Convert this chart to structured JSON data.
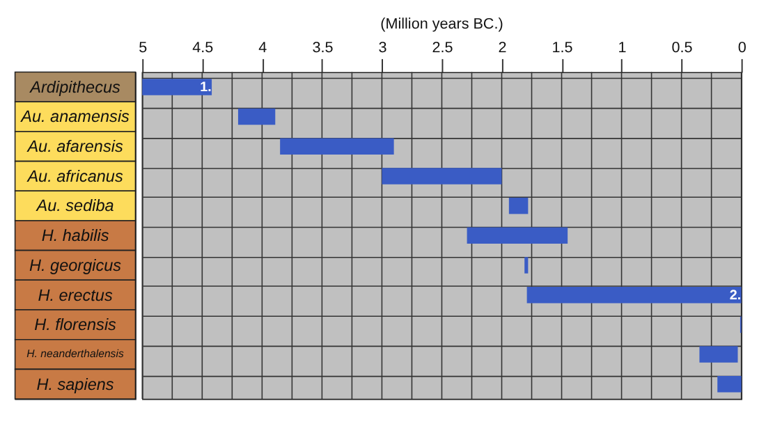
{
  "chart_data": {
    "type": "bar",
    "orientation": "horizontal",
    "title": "(Million years BC.)",
    "categories": [
      "Ardipithecus",
      "Au. anamensis",
      "Au. afarensis",
      "Au. africanus",
      "Au. sediba",
      "H. habilis",
      "H. georgicus",
      "H. erectus",
      "H. florensis",
      "H. neanderthalensis",
      "H. sapiens"
    ],
    "base": [
      4.42,
      3.89,
      2.9,
      2.0,
      1.78,
      1.45,
      1.78,
      0.0,
      0.0,
      0.03,
      0.0
    ],
    "values": [
      0.58,
      0.31,
      0.95,
      1.0,
      0.16,
      0.84,
      0.03,
      1.79,
      0.01,
      0.32,
      0.2
    ],
    "color": "#3a5cc5",
    "xlim": [
      5,
      0
    ],
    "xticks": [
      5,
      {
        "value": 4.75,
        "label": null
      },
      4.5,
      {
        "value": 4.25,
        "label": null
      },
      4,
      {
        "value": 3.75,
        "label": null
      },
      3.5,
      {
        "value": 3.25,
        "label": null
      },
      3,
      {
        "value": 2.75,
        "label": null
      },
      2.5,
      {
        "value": 2.25,
        "label": null
      },
      2,
      {
        "value": 1.75,
        "label": null
      },
      1.5,
      {
        "value": 1.25,
        "label": null
      },
      1,
      {
        "value": 0.75,
        "label": null
      },
      0.5,
      {
        "value": 0.25,
        "label": null
      },
      0
    ],
    "grid": true,
    "annotations": [
      {
        "text": "1.",
        "x": 4.47,
        "y": "Ardipithecus"
      },
      {
        "text": "2.",
        "x": 0.05,
        "y": "H. erectus"
      }
    ]
  }
}
